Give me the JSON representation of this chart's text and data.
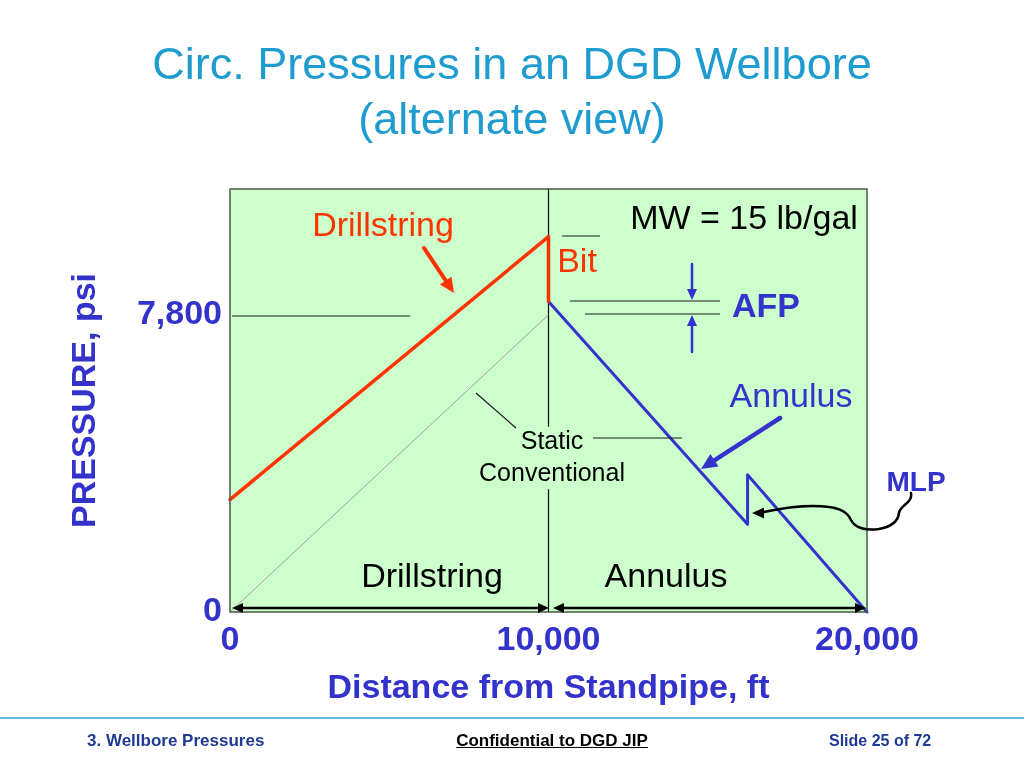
{
  "chart_data": {
    "type": "line",
    "title": "Circ. Pressures in an DGD Wellbore (alternate view)",
    "xlabel": "Distance from Standpipe, ft",
    "ylabel": "PRESSURE, psi",
    "xlim": [
      0,
      20000
    ],
    "ylim": [
      0,
      11100
    ],
    "xticks": [
      0,
      {
        "value": 10000,
        "label": "10,000"
      },
      {
        "value": 20000,
        "label": "20,000"
      }
    ],
    "yticks": [
      0,
      {
        "value": 7800,
        "label": "7,800"
      }
    ],
    "series": [
      {
        "name": "Drillstring",
        "color": "#ff3300",
        "x": [
          0,
          10000,
          10000
        ],
        "values": [
          2950,
          9850,
          8150
        ]
      },
      {
        "name": "Annulus",
        "color": "#3333cc",
        "x": [
          10000,
          16250,
          16250,
          20000
        ],
        "values": [
          8150,
          2300,
          3600,
          0
        ]
      },
      {
        "color": "#999999",
        "x": [
          0,
          10000
        ],
        "values": [
          0,
          7800
        ]
      }
    ],
    "ref_lines": [
      {
        "axis": "x",
        "value": 10000,
        "color": "#000000"
      }
    ],
    "annotations": [
      "MW = 15 lb/gal",
      "Bit",
      "AFP",
      "Static Conventional",
      "Drillstring",
      "Annulus",
      "MLP",
      "3. Wellbore Pressures",
      "Confidential to DGD JIP",
      "Slide 25 of 72"
    ]
  }
}
